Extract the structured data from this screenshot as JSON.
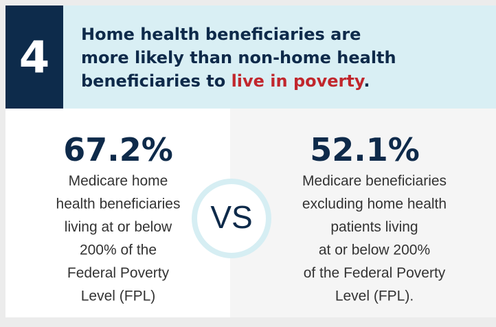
{
  "badge": "4",
  "header": {
    "lines": [
      "Home health beneficiaries are",
      "more likely than non-home health",
      "beneficiaries to"
    ],
    "highlight": "live in poverty",
    "end": "."
  },
  "left": {
    "stat": "67.2%",
    "lines": [
      "Medicare home",
      "health beneficiaries",
      "living at or below",
      "200% of the",
      "Federal Poverty",
      "Level (FPL)"
    ]
  },
  "versus": "VS",
  "right": {
    "stat": "52.1%",
    "lines": [
      "Medicare beneficiaries",
      "excluding home health",
      "patients living",
      "at or below 200%",
      "of the Federal Poverty",
      "Level (FPL)."
    ]
  }
}
